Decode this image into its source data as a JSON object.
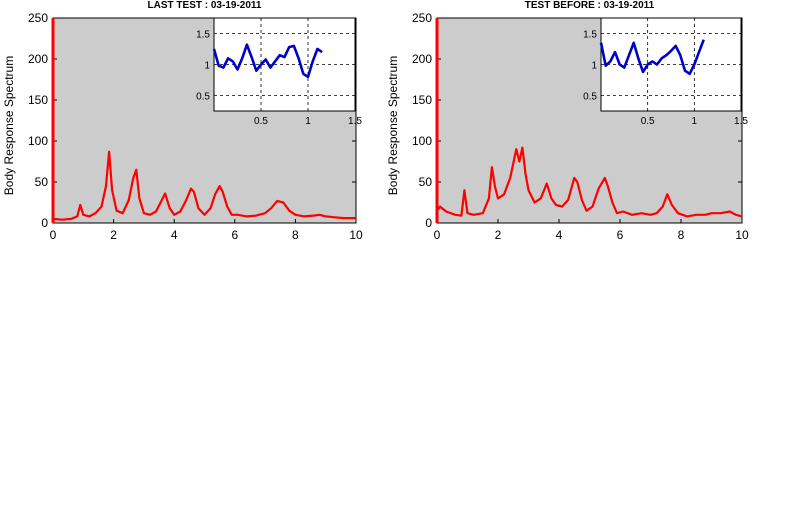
{
  "chart_data": [
    {
      "type": "line",
      "title": "LAST TEST : 03-19-2011",
      "ylabel": "Body Response Spectrum",
      "xlabel": "",
      "xlim": [
        0,
        10
      ],
      "ylim": [
        0,
        250
      ],
      "xticks": [
        "0",
        "2",
        "4",
        "6",
        "8",
        "10"
      ],
      "yticks": [
        "0",
        "50",
        "100",
        "150",
        "200",
        "250"
      ],
      "background": "#cccccc",
      "series": [
        {
          "color": "#ff0000",
          "x": [
            0,
            0.3,
            0.6,
            0.8,
            0.9,
            1.0,
            1.2,
            1.4,
            1.6,
            1.75,
            1.85,
            1.95,
            2.1,
            2.3,
            2.5,
            2.65,
            2.75,
            2.85,
            3.0,
            3.2,
            3.4,
            3.55,
            3.7,
            3.85,
            4.0,
            4.2,
            4.4,
            4.55,
            4.65,
            4.8,
            5.0,
            5.2,
            5.35,
            5.5,
            5.6,
            5.75,
            5.9,
            6.1,
            6.4,
            6.7,
            7.0,
            7.2,
            7.4,
            7.6,
            7.8,
            8.0,
            8.3,
            8.6,
            8.8,
            9.0,
            9.3,
            9.6,
            9.8,
            10.0
          ],
          "y": [
            5,
            4,
            5,
            8,
            22,
            10,
            8,
            12,
            20,
            45,
            87,
            40,
            15,
            12,
            28,
            55,
            65,
            30,
            12,
            10,
            14,
            25,
            36,
            18,
            10,
            14,
            28,
            42,
            38,
            18,
            10,
            18,
            35,
            45,
            38,
            20,
            10,
            10,
            8,
            9,
            12,
            18,
            27,
            25,
            15,
            10,
            8,
            9,
            10,
            8,
            7,
            6,
            6,
            6
          ]
        }
      ],
      "inset": {
        "xlim": [
          0,
          1.5
        ],
        "ylim": [
          0.25,
          1.75
        ],
        "xticks": [
          "0.5",
          "1",
          "1.5"
        ],
        "yticks": [
          "0.5",
          "1",
          "1.5"
        ],
        "grid": true,
        "series": [
          {
            "color": "#0000cc",
            "x": [
              0,
              0.05,
              0.1,
              0.15,
              0.2,
              0.25,
              0.3,
              0.35,
              0.4,
              0.45,
              0.5,
              0.55,
              0.6,
              0.65,
              0.7,
              0.75,
              0.8,
              0.85,
              0.9,
              0.95,
              1.0,
              1.05,
              1.1,
              1.15
            ],
            "y": [
              1.25,
              0.98,
              0.95,
              1.1,
              1.05,
              0.92,
              1.1,
              1.32,
              1.12,
              0.9,
              1.0,
              1.08,
              0.95,
              1.05,
              1.15,
              1.12,
              1.28,
              1.3,
              1.1,
              0.85,
              0.8,
              1.05,
              1.25,
              1.2
            ]
          }
        ]
      }
    },
    {
      "type": "line",
      "title": "TEST BEFORE : 03-19-2011",
      "ylabel": "Body Response Spectrum",
      "xlabel": "",
      "xlim": [
        0,
        10
      ],
      "ylim": [
        0,
        250
      ],
      "xticks": [
        "0",
        "2",
        "4",
        "6",
        "8",
        "10"
      ],
      "yticks": [
        "0",
        "50",
        "100",
        "150",
        "200",
        "250"
      ],
      "background": "#cccccc",
      "series": [
        {
          "color": "#ff0000",
          "x": [
            0,
            0.1,
            0.3,
            0.6,
            0.8,
            0.9,
            1.0,
            1.2,
            1.5,
            1.7,
            1.8,
            1.9,
            2.0,
            2.2,
            2.4,
            2.6,
            2.7,
            2.8,
            2.9,
            3.0,
            3.2,
            3.4,
            3.6,
            3.75,
            3.9,
            4.1,
            4.3,
            4.5,
            4.6,
            4.75,
            4.9,
            5.1,
            5.3,
            5.5,
            5.6,
            5.75,
            5.9,
            6.1,
            6.4,
            6.7,
            7.0,
            7.2,
            7.4,
            7.55,
            7.7,
            7.9,
            8.2,
            8.5,
            8.8,
            9.0,
            9.3,
            9.6,
            9.8,
            10.0
          ],
          "y": [
            15,
            20,
            14,
            10,
            9,
            40,
            12,
            10,
            12,
            30,
            68,
            45,
            30,
            35,
            55,
            90,
            75,
            92,
            60,
            40,
            25,
            30,
            48,
            30,
            22,
            20,
            28,
            55,
            50,
            28,
            15,
            20,
            42,
            55,
            45,
            25,
            12,
            14,
            10,
            12,
            10,
            12,
            20,
            35,
            22,
            12,
            8,
            10,
            10,
            12,
            12,
            14,
            10,
            8
          ]
        }
      ],
      "inset": {
        "xlim": [
          0,
          1.5
        ],
        "ylim": [
          0.25,
          1.75
        ],
        "xticks": [
          "0.5",
          "1",
          "1.5"
        ],
        "yticks": [
          "0.5",
          "1",
          "1.5"
        ],
        "grid": true,
        "series": [
          {
            "color": "#0000cc",
            "x": [
              0,
              0.05,
              0.1,
              0.15,
              0.2,
              0.25,
              0.3,
              0.35,
              0.4,
              0.45,
              0.5,
              0.55,
              0.6,
              0.65,
              0.7,
              0.75,
              0.8,
              0.85,
              0.9,
              0.95,
              1.0,
              1.05,
              1.1
            ],
            "y": [
              1.35,
              0.98,
              1.05,
              1.2,
              1.0,
              0.95,
              1.15,
              1.35,
              1.1,
              0.88,
              1.0,
              1.05,
              1.0,
              1.1,
              1.15,
              1.22,
              1.3,
              1.15,
              0.9,
              0.85,
              1.0,
              1.2,
              1.4
            ]
          }
        ]
      }
    }
  ]
}
